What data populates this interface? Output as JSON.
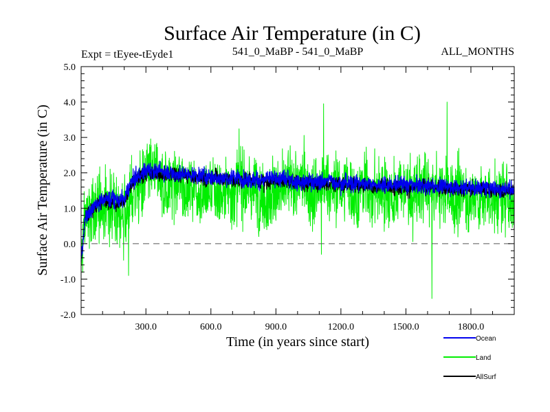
{
  "chart_data": {
    "type": "line",
    "title": "Surface Air Temperature (in C)",
    "subtitle_left": "Expt = tEyee-tEyde1",
    "subtitle_center": "541_0_MaBP - 541_0_MaBP",
    "subtitle_right": "ALL_MONTHS",
    "xlabel": "Time (in years since start)",
    "ylabel": "Surface Air Temperature (in C)",
    "xlim": [
      1,
      2000
    ],
    "ylim": [
      -2.0,
      5.0
    ],
    "x_ticks": [
      300,
      600,
      900,
      1200,
      1500,
      1800
    ],
    "x_tick_labels": [
      "300.0",
      "600.0",
      "900.0",
      "1200.0",
      "1500.0",
      "1800.0"
    ],
    "y_ticks": [
      -2,
      -1,
      0,
      1,
      2,
      3,
      4,
      5
    ],
    "y_tick_labels": [
      "-2.0",
      "-1.0",
      "0.0",
      "1.0",
      "2.0",
      "3.0",
      "4.0",
      "5.0"
    ],
    "zero_line": "dashed",
    "legend_position": "bottom-right, outside plot",
    "series": [
      {
        "name": "Land",
        "color": "#00ee00",
        "approx_mean_profile": {
          "x": [
            1,
            20,
            100,
            200,
            230,
            300,
            600,
            900,
            1200,
            1500,
            1800,
            2000
          ],
          "y": [
            -0.6,
            0.7,
            1.1,
            1.0,
            1.4,
            1.75,
            1.6,
            1.55,
            1.55,
            1.45,
            1.35,
            1.3
          ]
        },
        "spread": 0.95,
        "notable_extremes": [
          {
            "x": 1620,
            "y": -1.55
          },
          {
            "x": 1690,
            "y": 4.0
          },
          {
            "x": 1120,
            "y": 3.95
          },
          {
            "x": 1110,
            "y": -0.3
          },
          {
            "x": 220,
            "y": -0.9
          }
        ]
      },
      {
        "name": "Ocean",
        "color": "#0000ee",
        "approx_mean_profile": {
          "x": [
            1,
            20,
            100,
            200,
            230,
            300,
            600,
            900,
            1200,
            1500,
            1800,
            2000
          ],
          "y": [
            -0.5,
            0.8,
            1.3,
            1.25,
            1.7,
            2.1,
            1.9,
            1.8,
            1.75,
            1.65,
            1.6,
            1.55
          ]
        },
        "spread": 0.22
      },
      {
        "name": "AllSurf",
        "color": "#000000",
        "approx_mean_profile": {
          "x": [
            1,
            20,
            100,
            200,
            230,
            300,
            600,
            900,
            1200,
            1500,
            1800,
            2000
          ],
          "y": [
            -0.5,
            0.8,
            1.25,
            1.2,
            1.6,
            2.0,
            1.85,
            1.75,
            1.7,
            1.6,
            1.55,
            1.5
          ]
        },
        "spread": 0.2
      }
    ]
  }
}
